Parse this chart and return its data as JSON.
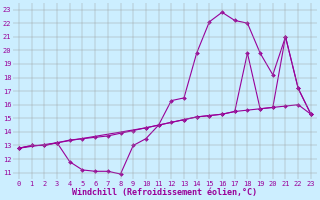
{
  "xlabel": "Windchill (Refroidissement éolien,°C)",
  "bg_color": "#cceeff",
  "line_color": "#990099",
  "xlim": [
    -0.5,
    23.5
  ],
  "ylim": [
    10.5,
    23.5
  ],
  "xticks": [
    0,
    1,
    2,
    3,
    4,
    5,
    6,
    7,
    8,
    9,
    10,
    11,
    12,
    13,
    14,
    15,
    16,
    17,
    18,
    19,
    20,
    21,
    22,
    23
  ],
  "yticks": [
    11,
    12,
    13,
    14,
    15,
    16,
    17,
    18,
    19,
    20,
    21,
    22,
    23
  ],
  "line1_x": [
    0,
    1,
    2,
    3,
    4,
    5,
    6,
    7,
    8,
    9,
    10,
    11,
    12,
    13,
    14,
    15,
    16,
    17,
    18,
    19,
    20,
    21,
    22,
    23
  ],
  "line1_y": [
    12.8,
    13.0,
    13.0,
    13.2,
    13.4,
    13.5,
    13.6,
    13.7,
    13.9,
    14.1,
    14.3,
    14.5,
    14.7,
    14.9,
    15.1,
    15.2,
    15.3,
    15.5,
    15.6,
    15.7,
    15.8,
    15.9,
    16.0,
    15.3
  ],
  "line2_x": [
    0,
    1,
    2,
    3,
    4,
    5,
    6,
    7,
    8,
    9,
    10,
    11,
    12,
    13,
    14,
    15,
    16,
    17,
    18,
    19,
    20,
    21,
    22,
    23
  ],
  "line2_y": [
    12.8,
    13.0,
    13.0,
    13.2,
    11.8,
    11.2,
    11.1,
    11.1,
    10.9,
    13.0,
    13.5,
    14.5,
    16.3,
    16.5,
    19.8,
    22.1,
    22.8,
    22.2,
    22.0,
    19.8,
    18.2,
    21.0,
    17.2,
    15.3
  ],
  "line3_x": [
    0,
    3,
    10,
    13,
    14,
    15,
    16,
    17,
    18,
    19,
    20,
    21,
    22,
    23
  ],
  "line3_y": [
    12.8,
    13.2,
    14.3,
    14.9,
    15.1,
    15.2,
    15.3,
    15.5,
    19.8,
    15.7,
    15.8,
    21.0,
    17.2,
    15.3
  ],
  "grid_color": "#999999",
  "tick_fontsize": 5,
  "xlabel_fontsize": 6,
  "lw": 0.8,
  "marker_size": 2.0
}
